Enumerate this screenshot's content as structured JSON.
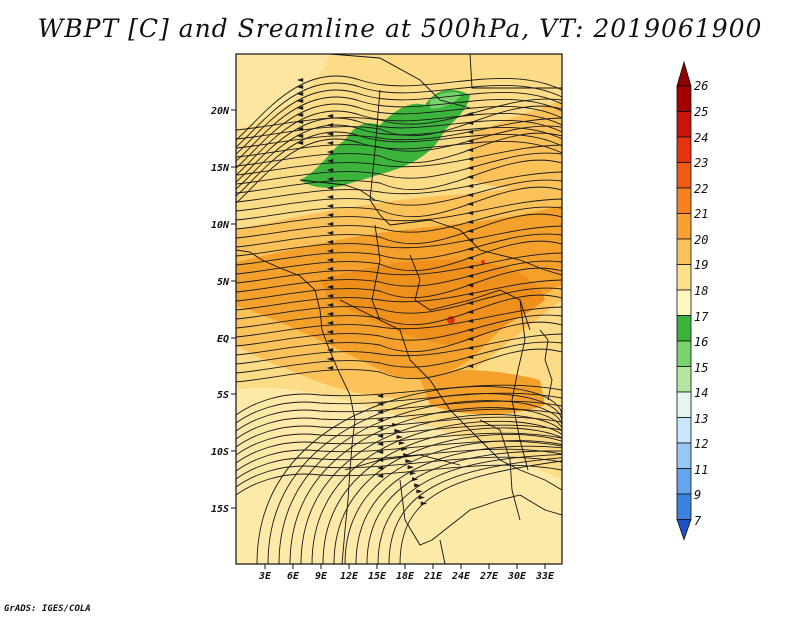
{
  "title": "WBPT [C] and Sreamline at 500hPa, VT: 2019061900",
  "footer": "GrADS: IGES/COLA",
  "map": {
    "lat_labels": [
      "20N",
      "15N",
      "10N",
      "5N",
      "EQ",
      "5S",
      "10S",
      "15S"
    ],
    "lon_labels": [
      "3E",
      "6E",
      "9E",
      "12E",
      "15E",
      "18E",
      "21E",
      "24E",
      "27E",
      "30E",
      "33E"
    ]
  },
  "colorbar": {
    "labels": [
      "26",
      "25",
      "24",
      "23",
      "22",
      "21",
      "20",
      "19",
      "18",
      "17",
      "16",
      "15",
      "14",
      "13",
      "12",
      "11",
      "9",
      "7"
    ],
    "colors": [
      "#a50000",
      "#c8140a",
      "#e6320f",
      "#f05a14",
      "#f5821e",
      "#faa032",
      "#fcc35a",
      "#fde08c",
      "#fff5c0",
      "#3cb43c",
      "#78d26e",
      "#b4e6a0",
      "#e6f5f0",
      "#c8e6ff",
      "#96c8f5",
      "#64a5eb",
      "#3c82e1",
      "#1e64d2"
    ],
    "top_arrow_color": "#8c0000",
    "bottom_arrow_color": "#1e50c8"
  }
}
